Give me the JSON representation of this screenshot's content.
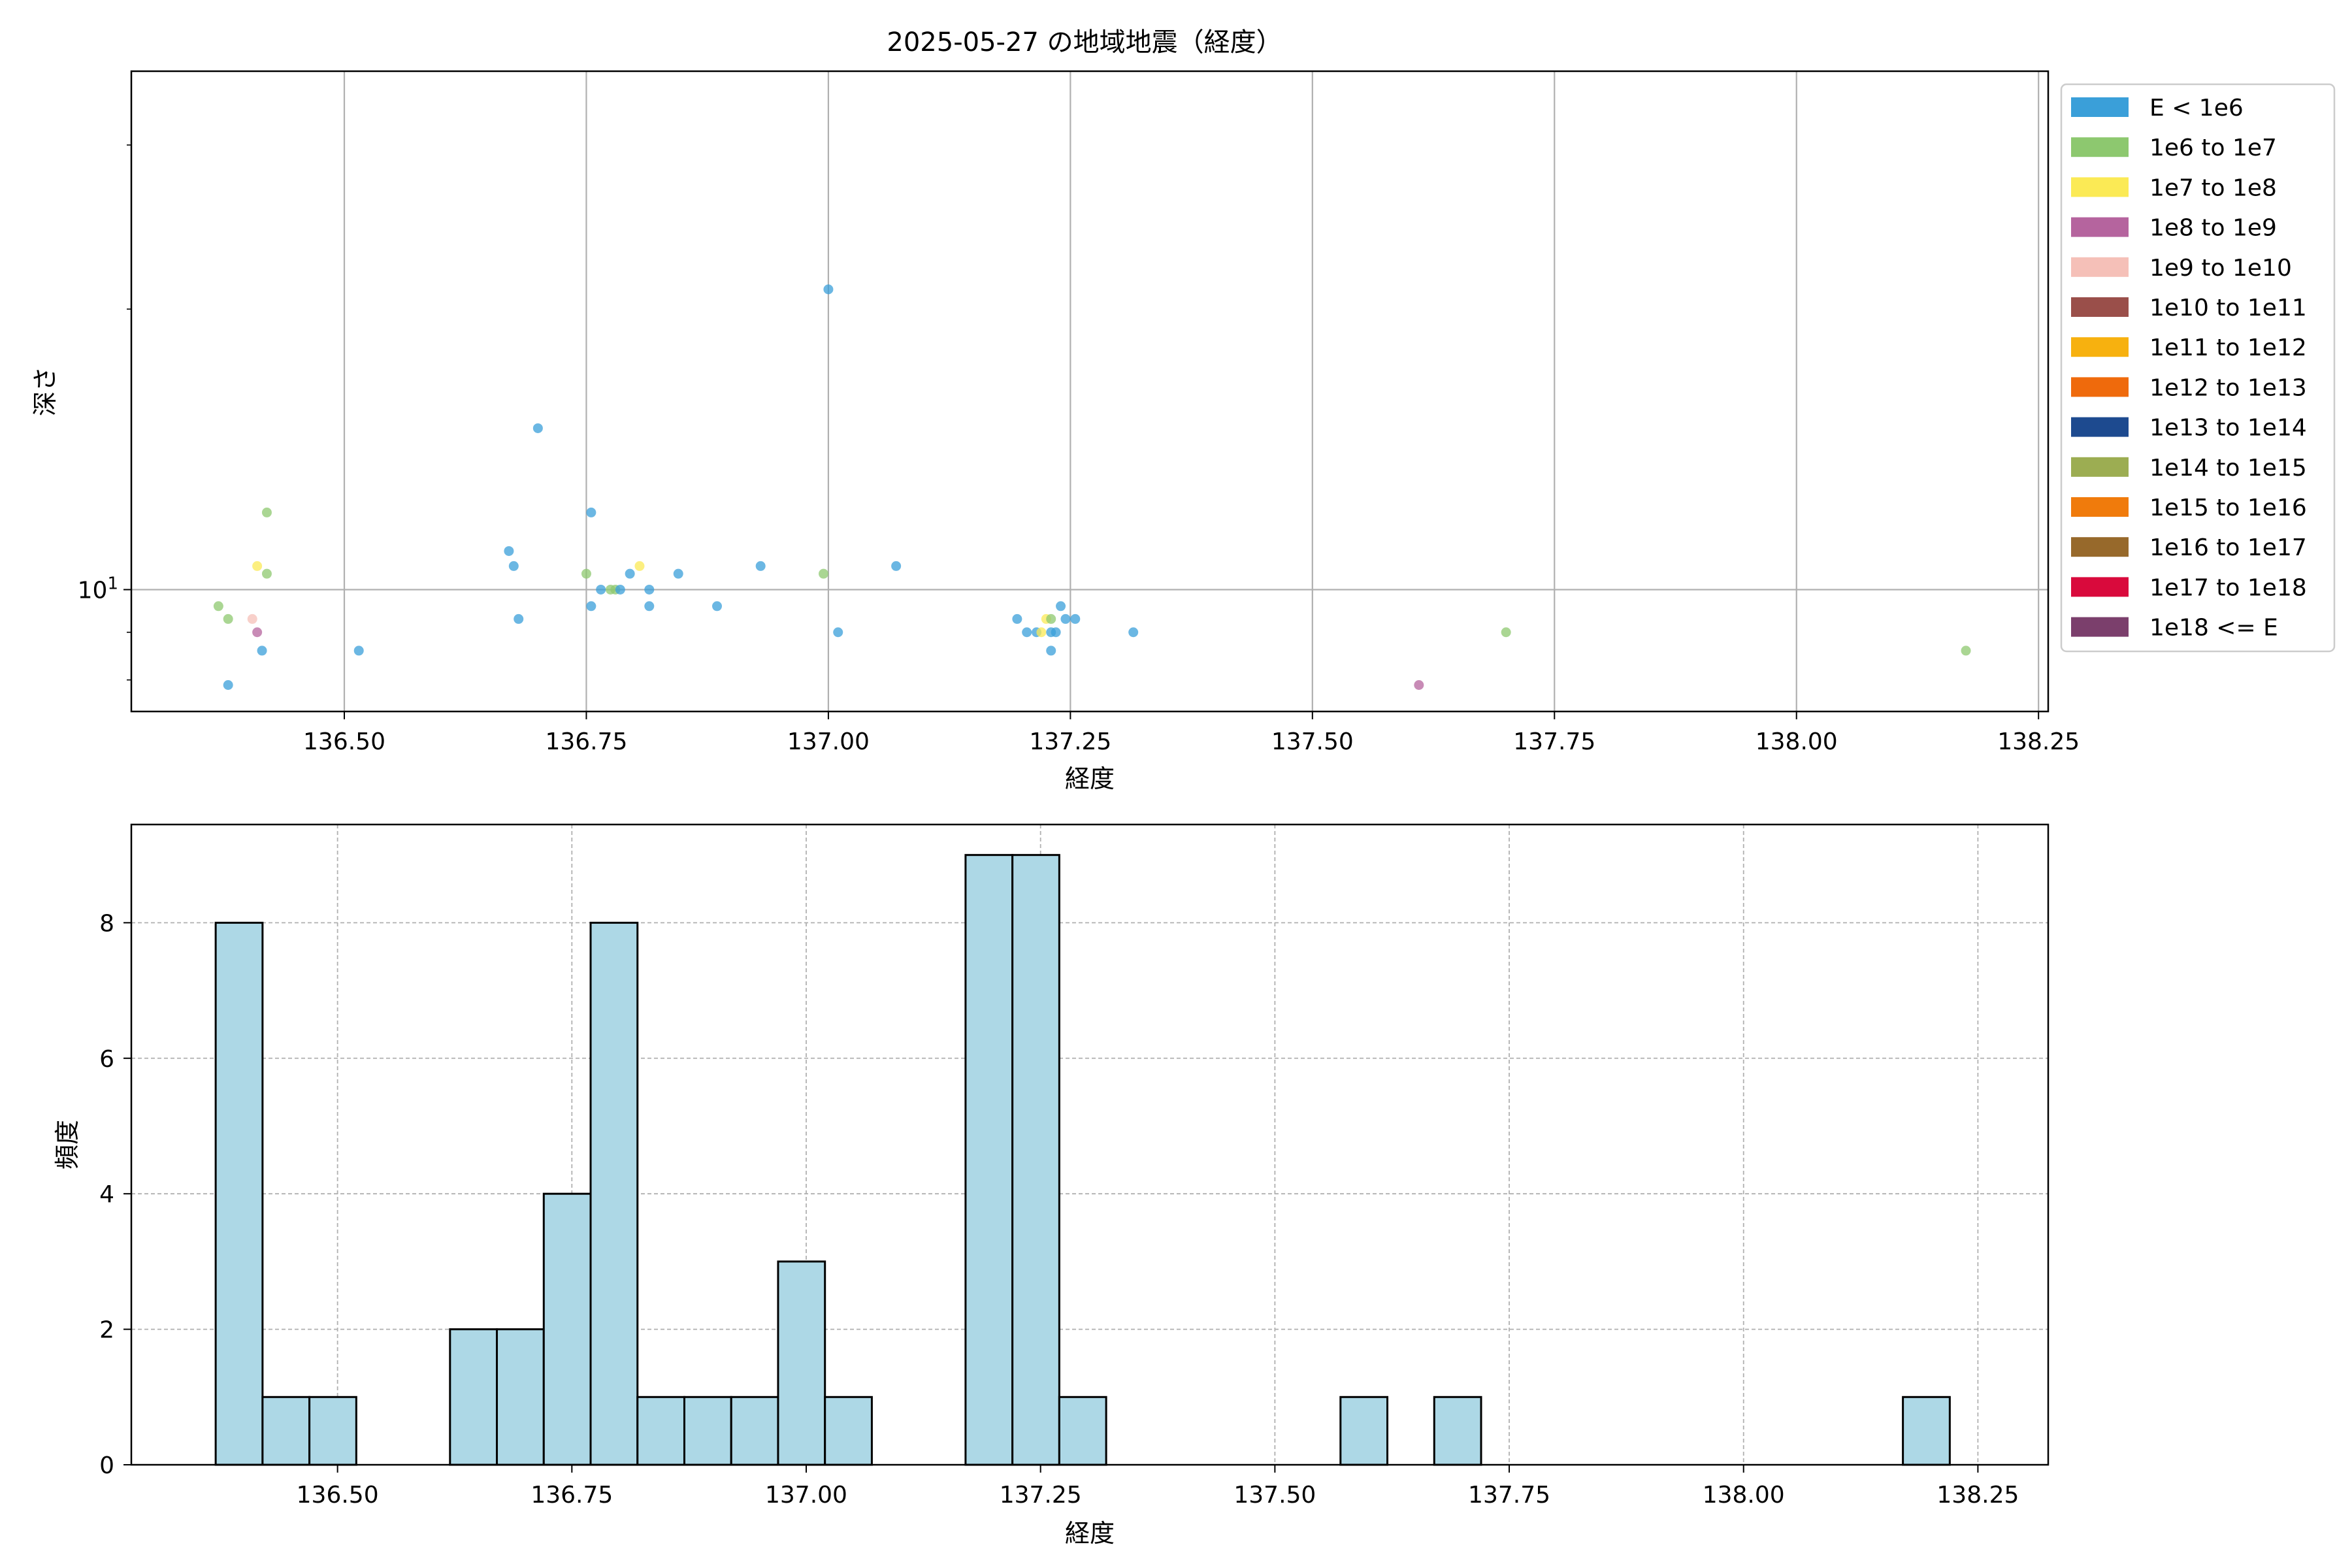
{
  "figure_title": "2025-05-27 の地域地震（経度）",
  "chart_data": [
    {
      "type": "scatter",
      "xlabel": "経度",
      "ylabel": "深さ",
      "xlim": [
        136.28,
        138.26
      ],
      "ylim": [
        7.4,
        36
      ],
      "yscale": "log",
      "grid": true,
      "legend_position": "outside-right",
      "xticks": [
        "136.50",
        "136.75",
        "137.00",
        "137.25",
        "137.50",
        "137.75",
        "138.00",
        "138.25"
      ],
      "ytick_labels": [
        {
          "base": "10",
          "exp": "1"
        }
      ],
      "legend": [
        {
          "label": "E < 1e6",
          "color": "#3a9fd9"
        },
        {
          "label": "1e6 to 1e7",
          "color": "#8dc86f"
        },
        {
          "label": "1e7 to 1e8",
          "color": "#fbea55"
        },
        {
          "label": "1e8 to 1e9",
          "color": "#b5649e"
        },
        {
          "label": "1e9 to 1e10",
          "color": "#f5c0b8"
        },
        {
          "label": "1e10 to 1e11",
          "color": "#9a4f4a"
        },
        {
          "label": "1e11 to 1e12",
          "color": "#f7b10f"
        },
        {
          "label": "1e12 to 1e13",
          "color": "#ef6a0c"
        },
        {
          "label": "1e13 to 1e14",
          "color": "#1d4a8f"
        },
        {
          "label": "1e14 to 1e15",
          "color": "#9cad52"
        },
        {
          "label": "1e15 to 1e16",
          "color": "#f07b0c"
        },
        {
          "label": "1e16 to 1e17",
          "color": "#97692b"
        },
        {
          "label": "1e17 to 1e18",
          "color": "#d90a3c"
        },
        {
          "label": "1e18 <= E",
          "color": "#7b3f6c"
        }
      ],
      "points": [
        {
          "x": 136.38,
          "y": 7.9,
          "c": 0
        },
        {
          "x": 136.415,
          "y": 8.6,
          "c": 0
        },
        {
          "x": 136.515,
          "y": 8.6,
          "c": 0
        },
        {
          "x": 136.37,
          "y": 9.6,
          "c": 1
        },
        {
          "x": 136.38,
          "y": 9.3,
          "c": 1
        },
        {
          "x": 136.405,
          "y": 9.3,
          "c": 4
        },
        {
          "x": 136.41,
          "y": 9.0,
          "c": 3
        },
        {
          "x": 136.41,
          "y": 10.6,
          "c": 2
        },
        {
          "x": 136.42,
          "y": 10.4,
          "c": 1
        },
        {
          "x": 136.42,
          "y": 12.1,
          "c": 1
        },
        {
          "x": 136.67,
          "y": 11.0,
          "c": 0
        },
        {
          "x": 136.675,
          "y": 10.6,
          "c": 0
        },
        {
          "x": 136.68,
          "y": 9.3,
          "c": 0
        },
        {
          "x": 136.7,
          "y": 14.9,
          "c": 0
        },
        {
          "x": 136.75,
          "y": 10.4,
          "c": 1
        },
        {
          "x": 136.755,
          "y": 12.1,
          "c": 0
        },
        {
          "x": 136.755,
          "y": 9.6,
          "c": 0
        },
        {
          "x": 136.765,
          "y": 10.0,
          "c": 0
        },
        {
          "x": 136.775,
          "y": 10.0,
          "c": 1
        },
        {
          "x": 136.78,
          "y": 10.0,
          "c": 1
        },
        {
          "x": 136.785,
          "y": 10.0,
          "c": 0
        },
        {
          "x": 136.795,
          "y": 10.4,
          "c": 0
        },
        {
          "x": 136.805,
          "y": 10.6,
          "c": 2
        },
        {
          "x": 136.815,
          "y": 9.6,
          "c": 0
        },
        {
          "x": 136.815,
          "y": 10.0,
          "c": 0
        },
        {
          "x": 136.845,
          "y": 10.4,
          "c": 0
        },
        {
          "x": 136.885,
          "y": 9.6,
          "c": 0
        },
        {
          "x": 136.93,
          "y": 10.6,
          "c": 0
        },
        {
          "x": 136.995,
          "y": 10.4,
          "c": 1
        },
        {
          "x": 137.0,
          "y": 21.0,
          "c": 0
        },
        {
          "x": 137.01,
          "y": 9.0,
          "c": 0
        },
        {
          "x": 137.07,
          "y": 10.6,
          "c": 0
        },
        {
          "x": 137.195,
          "y": 9.3,
          "c": 0
        },
        {
          "x": 137.205,
          "y": 9.0,
          "c": 0
        },
        {
          "x": 137.215,
          "y": 9.0,
          "c": 0
        },
        {
          "x": 137.22,
          "y": 9.0,
          "c": 2
        },
        {
          "x": 137.225,
          "y": 9.3,
          "c": 2
        },
        {
          "x": 137.23,
          "y": 9.0,
          "c": 0
        },
        {
          "x": 137.23,
          "y": 9.3,
          "c": 1
        },
        {
          "x": 137.23,
          "y": 8.6,
          "c": 0
        },
        {
          "x": 137.235,
          "y": 9.0,
          "c": 0
        },
        {
          "x": 137.24,
          "y": 9.6,
          "c": 0
        },
        {
          "x": 137.245,
          "y": 9.3,
          "c": 0
        },
        {
          "x": 137.255,
          "y": 9.3,
          "c": 0
        },
        {
          "x": 137.315,
          "y": 9.0,
          "c": 0
        },
        {
          "x": 137.61,
          "y": 7.9,
          "c": 3
        },
        {
          "x": 137.7,
          "y": 9.0,
          "c": 1
        },
        {
          "x": 138.175,
          "y": 8.6,
          "c": 1
        }
      ]
    },
    {
      "type": "bar",
      "subtype": "histogram",
      "xlabel": "経度",
      "ylabel": "頻度",
      "xlim": [
        136.28,
        138.325
      ],
      "ylim": [
        0,
        9.45
      ],
      "grid": true,
      "grid_style": "dashed",
      "bar_color": "#add8e6",
      "edge_color": "#000000",
      "bin_start": 136.37,
      "bin_width": 0.05,
      "values": [
        8,
        1,
        1,
        0,
        0,
        2,
        2,
        4,
        8,
        1,
        1,
        1,
        3,
        1,
        0,
        0,
        9,
        9,
        1,
        0,
        0,
        0,
        0,
        0,
        1,
        0,
        1,
        0,
        0,
        0,
        0,
        0,
        0,
        0,
        0,
        0,
        1
      ],
      "xticks": [
        "136.50",
        "136.75",
        "137.00",
        "137.25",
        "137.50",
        "137.75",
        "138.00",
        "138.25"
      ],
      "yticks": [
        "0",
        "2",
        "4",
        "6",
        "8"
      ]
    }
  ]
}
